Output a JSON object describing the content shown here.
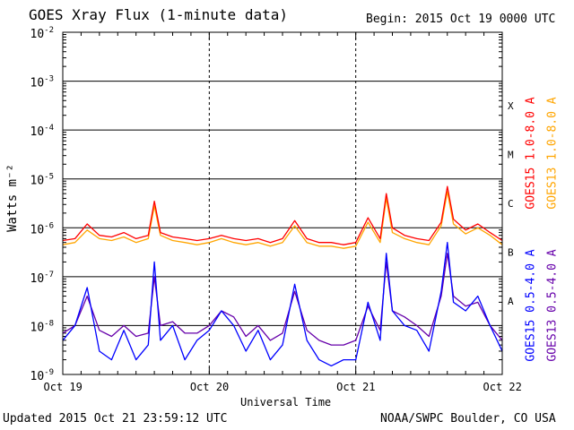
{
  "title": "GOES Xray Flux (1-minute data)",
  "begin_label": "Begin:  2015 Oct 19 0000 UTC",
  "updated_label": "Updated 2015 Oct 21 23:59:12 UTC",
  "credit_label": "NOAA/SWPC Boulder, CO USA",
  "colors": {
    "goes15_long": "#ff0000",
    "goes13_long": "#ffa500",
    "goes15_short": "#0000ff",
    "goes13_short": "#6600aa",
    "grid": "#000000"
  },
  "chart_data": {
    "type": "line",
    "title": "GOES Xray Flux (1-minute data)",
    "xlabel": "Universal Time",
    "ylabel": "Watts m⁻²",
    "y_scale": "log",
    "ylim": [
      1e-09,
      0.01
    ],
    "xlim": [
      "2015-10-19 00:00",
      "2015-10-22 00:00"
    ],
    "x_ticks": [
      "Oct 19",
      "Oct 20",
      "Oct 21",
      "Oct 22"
    ],
    "y_ticks": [
      {
        "base": "10",
        "exp": "-9"
      },
      {
        "base": "10",
        "exp": "-8"
      },
      {
        "base": "10",
        "exp": "-7"
      },
      {
        "base": "10",
        "exp": "-6"
      },
      {
        "base": "10",
        "exp": "-5"
      },
      {
        "base": "10",
        "exp": "-4"
      },
      {
        "base": "10",
        "exp": "-3"
      },
      {
        "base": "10",
        "exp": "-2"
      }
    ],
    "flare_classes": [
      "A",
      "B",
      "C",
      "M",
      "X"
    ],
    "grid": true,
    "legend_position": "right, rotated",
    "x_hours": [
      0,
      2,
      4,
      6,
      8,
      10,
      12,
      14,
      15,
      16,
      18,
      20,
      22,
      24,
      26,
      28,
      30,
      32,
      34,
      36,
      38,
      40,
      42,
      44,
      46,
      48,
      50,
      52,
      53,
      54,
      56,
      58,
      60,
      62,
      63,
      64,
      66,
      68,
      70,
      72
    ],
    "series": [
      {
        "name": "GOES15 1.0-8.0 A",
        "color": "#ff0000",
        "values": [
          5.5e-07,
          6e-07,
          1.2e-06,
          7e-07,
          6.5e-07,
          8e-07,
          6e-07,
          7e-07,
          3.5e-06,
          8e-07,
          6.5e-07,
          6e-07,
          5.5e-07,
          6e-07,
          7e-07,
          6e-07,
          5.5e-07,
          6e-07,
          5e-07,
          6e-07,
          1.4e-06,
          6e-07,
          5e-07,
          5e-07,
          4.5e-07,
          5e-07,
          1.6e-06,
          6e-07,
          5e-06,
          1e-06,
          7e-07,
          6e-07,
          5.5e-07,
          1.3e-06,
          7e-06,
          1.5e-06,
          9e-07,
          1.2e-06,
          8e-07,
          5.5e-07
        ]
      },
      {
        "name": "GOES13 1.0-8.0 A",
        "color": "#ffa500",
        "values": [
          4.5e-07,
          5e-07,
          9e-07,
          6e-07,
          5.5e-07,
          6.5e-07,
          5e-07,
          6e-07,
          2.8e-06,
          7e-07,
          5.5e-07,
          5e-07,
          4.5e-07,
          5e-07,
          6e-07,
          5e-07,
          4.5e-07,
          5e-07,
          4.2e-07,
          5e-07,
          1.1e-06,
          5e-07,
          4.2e-07,
          4.2e-07,
          3.8e-07,
          4.2e-07,
          1.3e-06,
          5e-07,
          4e-06,
          8e-07,
          6e-07,
          5e-07,
          4.5e-07,
          1.1e-06,
          5.5e-06,
          1.2e-06,
          7.5e-07,
          1e-06,
          7e-07,
          4.5e-07
        ]
      },
      {
        "name": "GOES15 0.5-4.0 A",
        "color": "#0000ff",
        "values": [
          5e-09,
          1e-08,
          6e-08,
          3e-09,
          2e-09,
          8e-09,
          2e-09,
          4e-09,
          2e-07,
          5e-09,
          1e-08,
          2e-09,
          5e-09,
          8e-09,
          2e-08,
          1e-08,
          3e-09,
          8e-09,
          2e-09,
          4e-09,
          7e-08,
          5e-09,
          2e-09,
          1.5e-09,
          2e-09,
          2e-09,
          3e-08,
          5e-09,
          3e-07,
          2e-08,
          1e-08,
          8e-09,
          3e-09,
          5e-08,
          5e-07,
          3e-08,
          2e-08,
          4e-08,
          1e-08,
          3e-09
        ]
      },
      {
        "name": "GOES13 0.5-4.0 A",
        "color": "#6600aa",
        "values": [
          7e-09,
          1e-08,
          4e-08,
          8e-09,
          6e-09,
          1e-08,
          6e-09,
          7e-09,
          1e-07,
          1e-08,
          1.2e-08,
          7e-09,
          7e-09,
          1e-08,
          2e-08,
          1.5e-08,
          6e-09,
          1e-08,
          5e-09,
          7e-09,
          5e-08,
          8e-09,
          5e-09,
          4e-09,
          4e-09,
          5e-09,
          2.5e-08,
          8e-09,
          2e-07,
          2e-08,
          1.5e-08,
          1e-08,
          6e-09,
          4e-08,
          3e-07,
          4e-08,
          2.5e-08,
          3e-08,
          1e-08,
          5e-09
        ]
      }
    ]
  }
}
